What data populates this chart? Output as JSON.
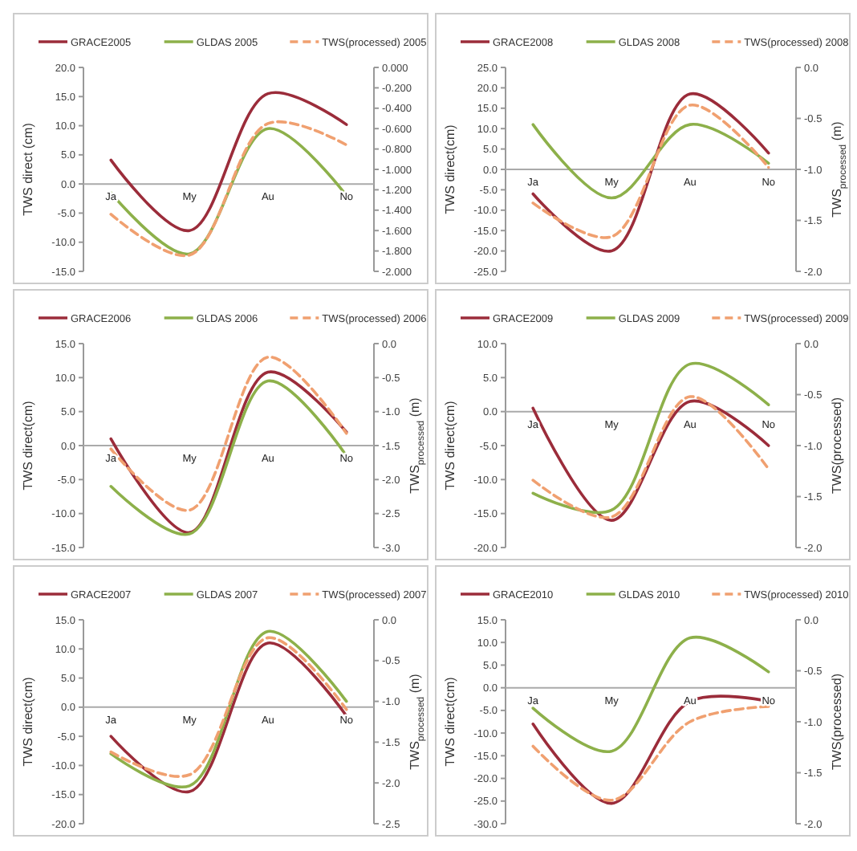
{
  "chart_data": [
    {
      "type": "line",
      "categories": [
        "Ja",
        "My",
        "Au",
        "No"
      ],
      "ylabel": "TWS direct (cm)",
      "legend": "top",
      "marker": "none",
      "grid": false,
      "ylim": [
        -15,
        20
      ],
      "yticks": [
        {
          "value": -15,
          "label": "-15.0"
        },
        {
          "value": -10,
          "label": "-10.0"
        },
        {
          "value": -5,
          "label": "-5.0"
        },
        {
          "value": 0,
          "label": "0.0"
        },
        {
          "value": 5,
          "label": "5.0"
        },
        {
          "value": 10,
          "label": "10.0"
        },
        {
          "value": 15,
          "label": "15.0"
        },
        {
          "value": 20,
          "label": "20.0"
        }
      ],
      "y2lim": [
        -2,
        0
      ],
      "y2ticks": [
        {
          "value": -2,
          "label": "-2.000"
        },
        {
          "value": -1.8,
          "label": "-1.800"
        },
        {
          "value": -1.6,
          "label": "-1.600"
        },
        {
          "value": -1.4,
          "label": "-1.400"
        },
        {
          "value": -1.2,
          "label": "-1.200"
        },
        {
          "value": -1,
          "label": "-1.000"
        },
        {
          "value": -0.8,
          "label": "-0.800"
        },
        {
          "value": -0.6,
          "label": "-0.600"
        },
        {
          "value": -0.4,
          "label": "-0.400"
        },
        {
          "value": -0.2,
          "label": "-0.200"
        },
        {
          "value": 0,
          "label": "0.000"
        }
      ],
      "series": [
        {
          "name": "GRACE2005",
          "color": "#9b2c3a",
          "line_style": "solid",
          "values": [
            4.1,
            -8,
            15.5,
            10.2
          ]
        },
        {
          "name": "GLDAS 2005",
          "color": "#8db04a",
          "line_style": "solid",
          "values": [
            -1.5,
            -12,
            9.5,
            -2
          ]
        },
        {
          "name": "TWS(processed) 2005",
          "color": "#f0a070",
          "line_style": "dashed",
          "axis": "y2",
          "values": [
            -1.44,
            -1.84,
            -0.55,
            -0.76
          ]
        }
      ]
    },
    {
      "type": "line",
      "categories": [
        "Ja",
        "My",
        "Au",
        "No"
      ],
      "ylabel": "TWS direct(cm)",
      "y2label": "TWS$_{processed}$ (m)",
      "legend": "top",
      "marker": "none",
      "grid": false,
      "ylim": [
        -25,
        25
      ],
      "yticks": [
        {
          "value": -25,
          "label": "-25.0"
        },
        {
          "value": -20,
          "label": "-20.0"
        },
        {
          "value": -15,
          "label": "-15.0"
        },
        {
          "value": -10,
          "label": "-10.0"
        },
        {
          "value": -5,
          "label": "-5.0"
        },
        {
          "value": 0,
          "label": "0.0"
        },
        {
          "value": 5,
          "label": "5.0"
        },
        {
          "value": 10,
          "label": "10.0"
        },
        {
          "value": 15,
          "label": "15.0"
        },
        {
          "value": 20,
          "label": "20.0"
        },
        {
          "value": 25,
          "label": "25.0"
        }
      ],
      "y2lim": [
        -2,
        0
      ],
      "y2ticks": [
        {
          "value": -2,
          "label": "-2.0"
        },
        {
          "value": -1.5,
          "label": "-1.5"
        },
        {
          "value": -1,
          "label": "-1.0"
        },
        {
          "value": -0.5,
          "label": "-0.5"
        },
        {
          "value": 0,
          "label": "0.0"
        }
      ],
      "series": [
        {
          "name": "GRACE2008",
          "color": "#9b2c3a",
          "line_style": "solid",
          "values": [
            -6,
            -20,
            18.5,
            4
          ]
        },
        {
          "name": "GLDAS 2008",
          "color": "#8db04a",
          "line_style": "solid",
          "values": [
            11,
            -7,
            11,
            1.5
          ]
        },
        {
          "name": "TWS(processed) 2008",
          "color": "#f0a070",
          "line_style": "dashed",
          "axis": "y2",
          "values": [
            -1.33,
            -1.66,
            -0.37,
            -0.98
          ]
        }
      ]
    },
    {
      "type": "line",
      "categories": [
        "Ja",
        "My",
        "Au",
        "No"
      ],
      "ylabel": "TWS direct(cm)",
      "y2label": "TWS$_{processed}$ (m)",
      "legend": "top",
      "marker": "none",
      "grid": false,
      "ylim": [
        -15,
        15
      ],
      "yticks": [
        {
          "value": -15,
          "label": "-15.0"
        },
        {
          "value": -10,
          "label": "-10.0"
        },
        {
          "value": -5,
          "label": "-5.0"
        },
        {
          "value": 0,
          "label": "0.0"
        },
        {
          "value": 5,
          "label": "5.0"
        },
        {
          "value": 10,
          "label": "10.0"
        },
        {
          "value": 15,
          "label": "15.0"
        }
      ],
      "y2lim": [
        -3,
        0
      ],
      "y2ticks": [
        {
          "value": -3,
          "label": "-3.0"
        },
        {
          "value": -2.5,
          "label": "-2.5"
        },
        {
          "value": -2,
          "label": "-2.0"
        },
        {
          "value": -1.5,
          "label": "-1.5"
        },
        {
          "value": -1,
          "label": "-1.0"
        },
        {
          "value": -0.5,
          "label": "-0.5"
        },
        {
          "value": 0,
          "label": "0.0"
        }
      ],
      "series": [
        {
          "name": "GRACE2006",
          "color": "#9b2c3a",
          "line_style": "solid",
          "values": [
            1,
            -12.8,
            10.8,
            2
          ]
        },
        {
          "name": "GLDAS 2006",
          "color": "#8db04a",
          "line_style": "solid",
          "values": [
            -6,
            -13,
            9.5,
            -1.5
          ]
        },
        {
          "name": "TWS(processed) 2006",
          "color": "#f0a070",
          "line_style": "dashed",
          "axis": "y2",
          "values": [
            -1.55,
            -2.45,
            -0.2,
            -1.32
          ]
        }
      ]
    },
    {
      "type": "line",
      "categories": [
        "Ja",
        "My",
        "Au",
        "No"
      ],
      "ylabel": "TWS direct(cm)",
      "y2label": "TWS(processed)",
      "legend": "top",
      "marker": "none",
      "grid": false,
      "ylim": [
        -20,
        10
      ],
      "yticks": [
        {
          "value": -20,
          "label": "-20.0"
        },
        {
          "value": -15,
          "label": "-15.0"
        },
        {
          "value": -10,
          "label": "-10.0"
        },
        {
          "value": -5,
          "label": "-5.0"
        },
        {
          "value": 0,
          "label": "0.0"
        },
        {
          "value": 5,
          "label": "5.0"
        },
        {
          "value": 10,
          "label": "10.0"
        }
      ],
      "y2lim": [
        -2,
        0
      ],
      "y2ticks": [
        {
          "value": -2,
          "label": "-2.0"
        },
        {
          "value": -1.5,
          "label": "-1.5"
        },
        {
          "value": -1,
          "label": "-1.0"
        },
        {
          "value": -0.5,
          "label": "-0.5"
        },
        {
          "value": 0,
          "label": "0.0"
        }
      ],
      "series": [
        {
          "name": "GRACE2009",
          "color": "#9b2c3a",
          "line_style": "solid",
          "values": [
            0.5,
            -16,
            1.5,
            -5
          ]
        },
        {
          "name": "GLDAS 2009",
          "color": "#8db04a",
          "line_style": "solid",
          "values": [
            -12,
            -14.5,
            7,
            1
          ]
        },
        {
          "name": "TWS(processed) 2009",
          "color": "#f0a070",
          "line_style": "dashed",
          "axis": "y2",
          "values": [
            -1.34,
            -1.7,
            -0.52,
            -1.23
          ]
        }
      ]
    },
    {
      "type": "line",
      "categories": [
        "Ja",
        "My",
        "Au",
        "No"
      ],
      "ylabel": "TWS direct(cm)",
      "y2label": "TWS$_{processed}$ (m)",
      "legend": "top",
      "marker": "none",
      "grid": false,
      "ylim": [
        -20,
        15
      ],
      "yticks": [
        {
          "value": -20,
          "label": "-20.0"
        },
        {
          "value": -15,
          "label": "-15.0"
        },
        {
          "value": -10,
          "label": "-10.0"
        },
        {
          "value": -5,
          "label": "-5.0"
        },
        {
          "value": 0,
          "label": "0.0"
        },
        {
          "value": 5,
          "label": "5.0"
        },
        {
          "value": 10,
          "label": "10.0"
        },
        {
          "value": 15,
          "label": "15.0"
        }
      ],
      "y2lim": [
        -2.5,
        0
      ],
      "y2ticks": [
        {
          "value": -2.5,
          "label": "-2.5"
        },
        {
          "value": -2,
          "label": "-2.0"
        },
        {
          "value": -1.5,
          "label": "-1.5"
        },
        {
          "value": -1,
          "label": "-1.0"
        },
        {
          "value": -0.5,
          "label": "-0.5"
        },
        {
          "value": 0,
          "label": "0.0"
        }
      ],
      "series": [
        {
          "name": "GRACE2007",
          "color": "#9b2c3a",
          "line_style": "solid",
          "values": [
            -5,
            -14.5,
            11,
            -1.5
          ]
        },
        {
          "name": "GLDAS 2007",
          "color": "#8db04a",
          "line_style": "solid",
          "values": [
            -8,
            -13.5,
            13,
            1
          ]
        },
        {
          "name": "TWS(processed) 2007",
          "color": "#f0a070",
          "line_style": "dashed",
          "axis": "y2",
          "values": [
            -1.62,
            -1.9,
            -0.22,
            -1.1
          ]
        }
      ]
    },
    {
      "type": "line",
      "categories": [
        "Ja",
        "My",
        "Au",
        "No"
      ],
      "ylabel": "TWS direct(cm)",
      "y2label": "TWS(processed)",
      "legend": "top",
      "marker": "none",
      "grid": false,
      "ylim": [
        -30,
        15
      ],
      "yticks": [
        {
          "value": -30,
          "label": "-30.0"
        },
        {
          "value": -25,
          "label": "-25.0"
        },
        {
          "value": -20,
          "label": "-20.0"
        },
        {
          "value": -15,
          "label": "-15.0"
        },
        {
          "value": -10,
          "label": "-10.0"
        },
        {
          "value": -5,
          "label": "-5.0"
        },
        {
          "value": 0,
          "label": "0.0"
        },
        {
          "value": 5,
          "label": "5.0"
        },
        {
          "value": 10,
          "label": "10.0"
        },
        {
          "value": 15,
          "label": "15.0"
        }
      ],
      "y2lim": [
        -2,
        0
      ],
      "y2ticks": [
        {
          "value": -2,
          "label": "-2.0"
        },
        {
          "value": -1.5,
          "label": "-1.5"
        },
        {
          "value": -1,
          "label": "-1.0"
        },
        {
          "value": -0.5,
          "label": "-0.5"
        },
        {
          "value": 0,
          "label": "0.0"
        }
      ],
      "series": [
        {
          "name": "GRACE2010",
          "color": "#9b2c3a",
          "line_style": "solid",
          "values": [
            -8,
            -25.5,
            -3,
            -3
          ]
        },
        {
          "name": "GLDAS 2010",
          "color": "#8db04a",
          "line_style": "solid",
          "values": [
            -4.5,
            -14,
            11,
            3.5
          ]
        },
        {
          "name": "TWS(processed) 2010",
          "color": "#f0a070",
          "line_style": "dashed",
          "axis": "y2",
          "values": [
            -1.24,
            -1.77,
            -1,
            -0.85
          ]
        }
      ]
    }
  ]
}
